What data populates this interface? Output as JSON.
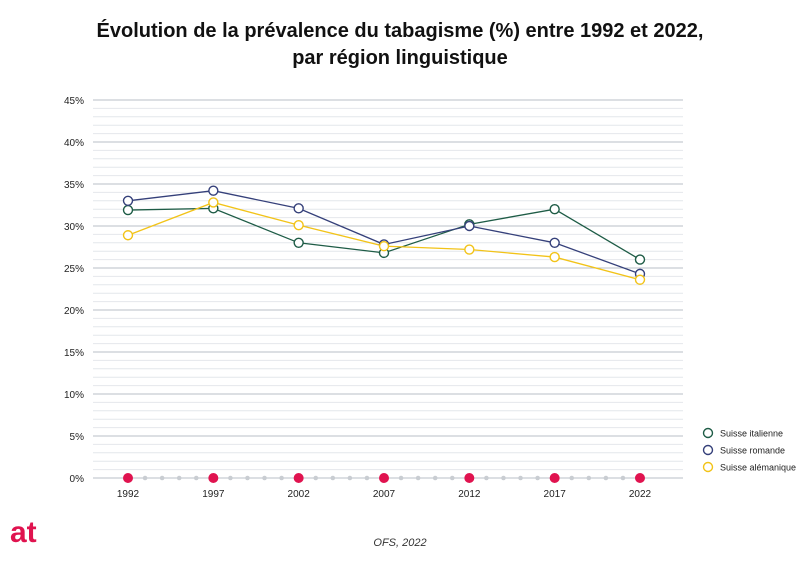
{
  "title_line1": "Évolution de la prévalence du tabagisme (%) entre 1992 et 2022,",
  "title_line2": "par région linguistique",
  "source": "OFS, 2022",
  "logo_text": "at",
  "colors": {
    "accent": "#e0134f",
    "grid_major": "#b9bfc7",
    "grid_minor": "#e4e7eb"
  },
  "chart_data": {
    "type": "line",
    "x": [
      1992,
      1997,
      2002,
      2007,
      2012,
      2017,
      2022
    ],
    "y_ticks": [
      "0%",
      "5%",
      "10%",
      "15%",
      "20%",
      "25%",
      "30%",
      "35%",
      "40%",
      "45%"
    ],
    "ylim": [
      0,
      45
    ],
    "xlim": [
      1992,
      2022
    ],
    "series": [
      {
        "name": "Suisse italienne",
        "color": "#1e5c46",
        "values": [
          31.9,
          32.1,
          28.0,
          26.8,
          30.2,
          32.0,
          26.0
        ]
      },
      {
        "name": "Suisse romande",
        "color": "#35407a",
        "values": [
          33.0,
          34.2,
          32.1,
          27.8,
          30.0,
          28.0,
          24.3
        ]
      },
      {
        "name": "Suisse alémanique",
        "color": "#f2c318",
        "values": [
          28.9,
          32.8,
          30.1,
          27.6,
          27.2,
          26.3,
          23.6
        ]
      }
    ],
    "legend_position": "right",
    "xlabel": "",
    "ylabel": ""
  }
}
